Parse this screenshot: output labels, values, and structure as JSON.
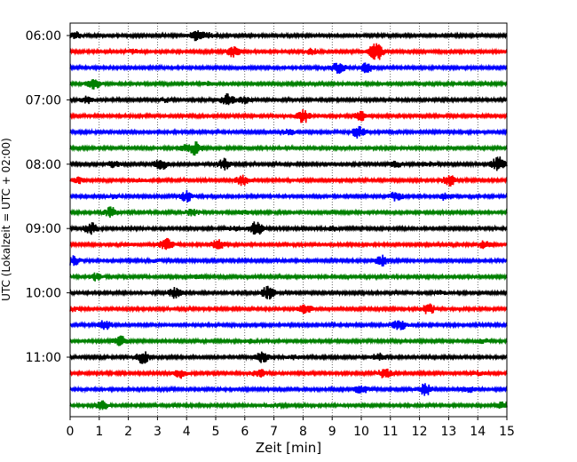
{
  "chart_data": {
    "type": "line",
    "title": "",
    "xlabel": "Zeit  [min]",
    "ylabel": "UTC (Lokalzeit = UTC + 02:00)",
    "xlim": [
      0,
      15
    ],
    "xticks": [
      0,
      1,
      2,
      3,
      4,
      5,
      6,
      7,
      8,
      9,
      10,
      11,
      12,
      13,
      14,
      15
    ],
    "y_tick_labels": [
      "06:00",
      "07:00",
      "08:00",
      "09:00",
      "10:00",
      "11:00"
    ],
    "grid": "vertical dotted at each minute",
    "trace_interval_min": 15,
    "first_trace": "06:00",
    "trace_count": 24,
    "color_cycle": [
      "#000000",
      "#ff0000",
      "#0000ff",
      "#008000"
    ],
    "events": [
      {
        "trace": 0,
        "bursts": [
          [
            4.3,
            0.7
          ],
          [
            4.7,
            0.4
          ],
          [
            0.2,
            0.5
          ]
        ]
      },
      {
        "trace": 1,
        "bursts": [
          [
            5.6,
            0.8
          ],
          [
            10.5,
            1.7
          ],
          [
            8.3,
            0.4
          ],
          [
            2.2,
            0.3
          ]
        ]
      },
      {
        "trace": 2,
        "bursts": [
          [
            9.2,
            0.9
          ],
          [
            10.2,
            0.8
          ]
        ]
      },
      {
        "trace": 3,
        "bursts": [
          [
            0.8,
            0.9
          ],
          [
            4.8,
            0.3
          ]
        ]
      },
      {
        "trace": 4,
        "bursts": [
          [
            0.6,
            0.6
          ],
          [
            5.4,
            0.9
          ],
          [
            6.0,
            0.5
          ],
          [
            3.3,
            0.3
          ]
        ]
      },
      {
        "trace": 5,
        "bursts": [
          [
            8.0,
            1.1
          ],
          [
            10.0,
            0.7
          ]
        ]
      },
      {
        "trace": 6,
        "bursts": [
          [
            9.9,
            1.0
          ],
          [
            7.5,
            0.4
          ]
        ]
      },
      {
        "trace": 7,
        "bursts": [
          [
            4.3,
            1.0
          ],
          [
            3.9,
            0.5
          ]
        ]
      },
      {
        "trace": 8,
        "bursts": [
          [
            3.1,
            0.9
          ],
          [
            5.3,
            0.8
          ],
          [
            14.7,
            1.1
          ],
          [
            1.5,
            0.5
          ],
          [
            11.2,
            0.4
          ],
          [
            12.3,
            0.3
          ]
        ]
      },
      {
        "trace": 9,
        "bursts": [
          [
            5.9,
            0.8
          ],
          [
            13.0,
            0.9
          ],
          [
            0.3,
            0.4
          ],
          [
            2.4,
            0.2
          ]
        ]
      },
      {
        "trace": 10,
        "bursts": [
          [
            4.0,
            0.8
          ],
          [
            11.2,
            0.7
          ],
          [
            12.9,
            0.6
          ],
          [
            1.5,
            0.3
          ]
        ]
      },
      {
        "trace": 11,
        "bursts": [
          [
            1.4,
            0.8
          ],
          [
            4.2,
            0.5
          ],
          [
            6.0,
            0.3
          ]
        ]
      },
      {
        "trace": 12,
        "bursts": [
          [
            0.7,
            0.9
          ],
          [
            6.4,
            1.1
          ],
          [
            9.0,
            0.3
          ],
          [
            5.6,
            0.3
          ]
        ]
      },
      {
        "trace": 13,
        "bursts": [
          [
            3.3,
            0.9
          ],
          [
            5.1,
            0.8
          ],
          [
            14.2,
            0.6
          ],
          [
            2.1,
            0.2
          ]
        ]
      },
      {
        "trace": 14,
        "bursts": [
          [
            10.7,
            0.8
          ],
          [
            0.1,
            0.7
          ],
          [
            3.0,
            0.2
          ]
        ]
      },
      {
        "trace": 15,
        "bursts": [
          [
            0.9,
            0.6
          ],
          [
            4.4,
            0.3
          ]
        ]
      },
      {
        "trace": 16,
        "bursts": [
          [
            3.6,
            0.8
          ],
          [
            6.8,
            1.0
          ],
          [
            12.7,
            0.3
          ]
        ]
      },
      {
        "trace": 17,
        "bursts": [
          [
            8.1,
            0.8
          ],
          [
            12.3,
            0.8
          ],
          [
            0.1,
            0.3
          ]
        ]
      },
      {
        "trace": 18,
        "bursts": [
          [
            1.2,
            0.7
          ],
          [
            11.3,
            0.9
          ]
        ]
      },
      {
        "trace": 19,
        "bursts": [
          [
            1.7,
            0.8
          ],
          [
            6.2,
            0.3
          ],
          [
            14.2,
            0.3
          ]
        ]
      },
      {
        "trace": 20,
        "bursts": [
          [
            2.5,
            0.9
          ],
          [
            6.6,
            0.8
          ],
          [
            10.6,
            0.7
          ],
          [
            7.7,
            0.3
          ]
        ]
      },
      {
        "trace": 21,
        "bursts": [
          [
            3.8,
            0.7
          ],
          [
            6.5,
            0.6
          ],
          [
            10.8,
            0.7
          ],
          [
            14.0,
            0.3
          ]
        ]
      },
      {
        "trace": 22,
        "bursts": [
          [
            10.0,
            0.7
          ],
          [
            12.2,
            0.9
          ],
          [
            13.7,
            0.4
          ]
        ]
      },
      {
        "trace": 23,
        "bursts": [
          [
            1.1,
            0.6
          ],
          [
            7.0,
            0.3
          ],
          [
            14.9,
            0.6
          ]
        ]
      }
    ]
  }
}
